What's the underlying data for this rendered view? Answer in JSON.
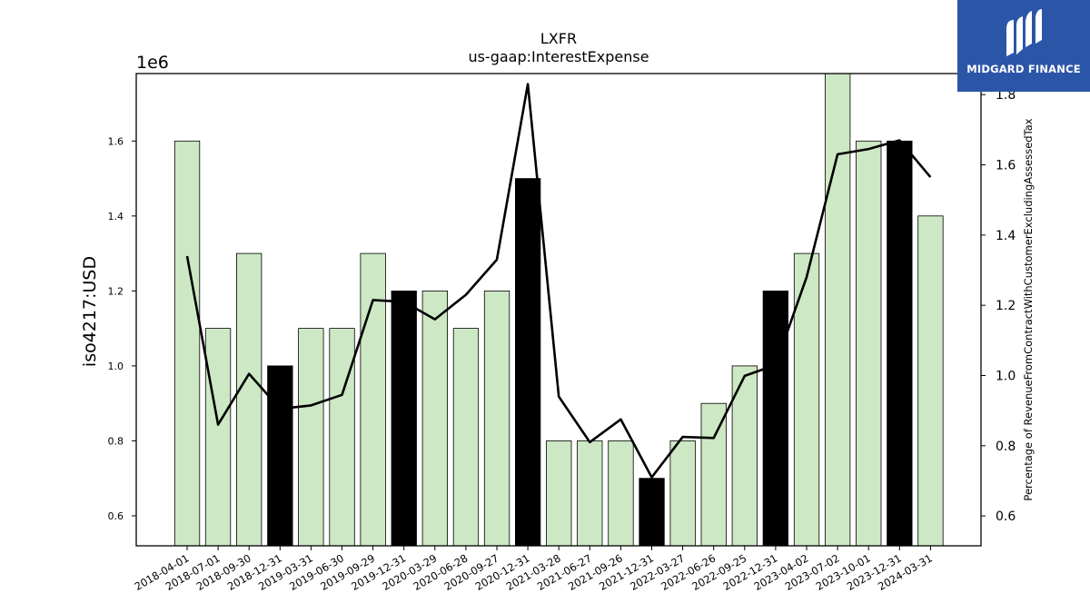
{
  "chart_data": {
    "type": "bar+line",
    "title": "LXFR",
    "subtitle": "us-gaap:InterestExpense",
    "ylabel_left": "iso4217:USD",
    "ylabel_right": "Percentage of RevenueFromContractWithCustomerExcludingAssessedTax",
    "y_offset_text": "1e6",
    "categories": [
      "2018-04-01",
      "2018-07-01",
      "2018-09-30",
      "2018-12-31",
      "2019-03-31",
      "2019-06-30",
      "2019-09-29",
      "2019-12-31",
      "2020-03-29",
      "2020-06-28",
      "2020-09-27",
      "2020-12-31",
      "2021-03-28",
      "2021-06-27",
      "2021-09-26",
      "2021-12-31",
      "2022-03-27",
      "2022-06-26",
      "2022-09-25",
      "2022-12-31",
      "2023-04-02",
      "2023-07-02",
      "2023-10-01",
      "2023-12-31",
      "2024-03-31"
    ],
    "bars": {
      "name": "InterestExpense",
      "values": [
        1.6,
        1.1,
        1.3,
        1.0,
        1.1,
        1.1,
        1.3,
        1.2,
        1.2,
        1.1,
        1.2,
        1.5,
        0.8,
        0.8,
        0.8,
        0.7,
        0.8,
        0.9,
        1.0,
        1.2,
        1.3,
        1.8,
        1.6,
        1.6,
        1.4
      ],
      "highlight": [
        false,
        false,
        false,
        true,
        false,
        false,
        false,
        true,
        false,
        false,
        false,
        true,
        false,
        false,
        false,
        true,
        false,
        false,
        false,
        true,
        false,
        false,
        false,
        true,
        false
      ],
      "color": "#cde8c4",
      "highlight_color": "#000000"
    },
    "line": {
      "name": "Percentage of RevenueFromContractWithCustomerExcludingAssessedTax",
      "values": [
        1.34,
        0.86,
        1.005,
        0.905,
        0.915,
        0.945,
        1.215,
        1.21,
        1.16,
        1.23,
        1.33,
        1.83,
        0.94,
        0.81,
        0.875,
        0.71,
        0.825,
        0.822,
        0.999,
        1.03,
        1.28,
        1.63,
        1.645,
        1.67,
        1.565
      ],
      "color": "#000000"
    },
    "yleft": {
      "min": 0.52,
      "max": 1.78,
      "ticks": [
        0.6,
        0.8,
        1.0,
        1.2,
        1.4,
        1.6
      ],
      "tick_labels": [
        "0.6",
        "0.8",
        "1.0",
        "1.2",
        "1.4",
        "1.6"
      ]
    },
    "yright": {
      "min": 0.515,
      "max": 1.86,
      "ticks": [
        0.6,
        0.8,
        1.0,
        1.2,
        1.4,
        1.6,
        1.8
      ],
      "tick_labels": [
        "0.6",
        "0.8",
        "1.0",
        "1.2",
        "1.4",
        "1.6",
        "1.8"
      ]
    },
    "grid": false
  },
  "logo": {
    "text": "MIDGARD FINANCE",
    "background": "#2b56a8"
  }
}
